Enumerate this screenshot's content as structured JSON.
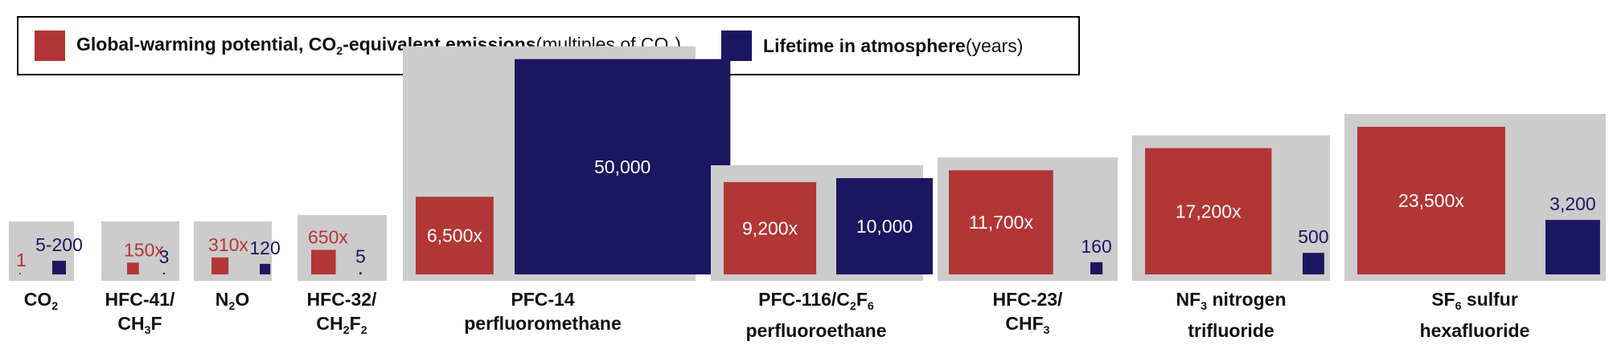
{
  "colors": {
    "gwp": "#b33636",
    "lifetime": "#1c1560",
    "panel": "#cccccc",
    "inside_text": "#ffffff"
  },
  "legend": {
    "gwp_bold_pre": "Global-warming potential, CO",
    "gwp_bold_sub": "2",
    "gwp_bold_post": "-equivalent emissions",
    "gwp_normal_pre": " (multiples of CO",
    "gwp_normal_sub": "2",
    "gwp_normal_post": ")",
    "lifetime_bold": "Lifetime in atmosphere",
    "lifetime_normal": " (years)"
  },
  "chart_data": {
    "type": "bar",
    "series": [
      {
        "name": "Global-warming potential, CO2-equivalent emissions (multiples of CO2)",
        "values": [
          1,
          150,
          310,
          650,
          6500,
          9200,
          11700,
          17200,
          23500
        ],
        "labels": [
          "1",
          "150x",
          "310x",
          "650x",
          "6,500x",
          "9,200x",
          "11,700x",
          "17,200x",
          "23,500x"
        ]
      },
      {
        "name": "Lifetime in atmosphere (years)",
        "values": [
          200,
          3,
          120,
          5,
          50000,
          10000,
          160,
          500,
          3200
        ],
        "labels": [
          "5-200",
          "3",
          "120",
          "5",
          "50,000",
          "10,000",
          "160",
          "500",
          "3,200"
        ]
      }
    ],
    "categories": [
      [
        [
          {
            "t": "CO"
          },
          {
            "t": "2",
            "sub": true
          }
        ]
      ],
      [
        [
          {
            "t": "HFC-41/"
          }
        ],
        [
          {
            "t": "CH"
          },
          {
            "t": "3",
            "sub": true
          },
          {
            "t": "F"
          }
        ]
      ],
      [
        [
          {
            "t": "N"
          },
          {
            "t": "2",
            "sub": true
          },
          {
            "t": "O"
          }
        ]
      ],
      [
        [
          {
            "t": "HFC-32/"
          }
        ],
        [
          {
            "t": "CH"
          },
          {
            "t": "2",
            "sub": true
          },
          {
            "t": "F"
          },
          {
            "t": "2",
            "sub": true
          }
        ]
      ],
      [
        [
          {
            "t": "PFC-14"
          }
        ],
        [
          {
            "t": "perfluoromethane"
          }
        ]
      ],
      [
        [
          {
            "t": "PFC-116/C"
          },
          {
            "t": "2",
            "sub": true
          },
          {
            "t": "F"
          },
          {
            "t": "6",
            "sub": true
          }
        ],
        [
          {
            "t": "perfluoroethane"
          }
        ]
      ],
      [
        [
          {
            "t": "HFC-23/"
          }
        ],
        [
          {
            "t": "CHF"
          },
          {
            "t": "3",
            "sub": true
          }
        ]
      ],
      [
        [
          {
            "t": "NF"
          },
          {
            "t": "3",
            "sub": true
          },
          {
            "t": " nitrogen"
          }
        ],
        [
          {
            "t": "trifluoride"
          }
        ]
      ],
      [
        [
          {
            "t": "SF"
          },
          {
            "t": "6",
            "sub": true
          },
          {
            "t": " sulfur"
          }
        ],
        [
          {
            "t": "hexafluoride"
          }
        ]
      ]
    ]
  }
}
